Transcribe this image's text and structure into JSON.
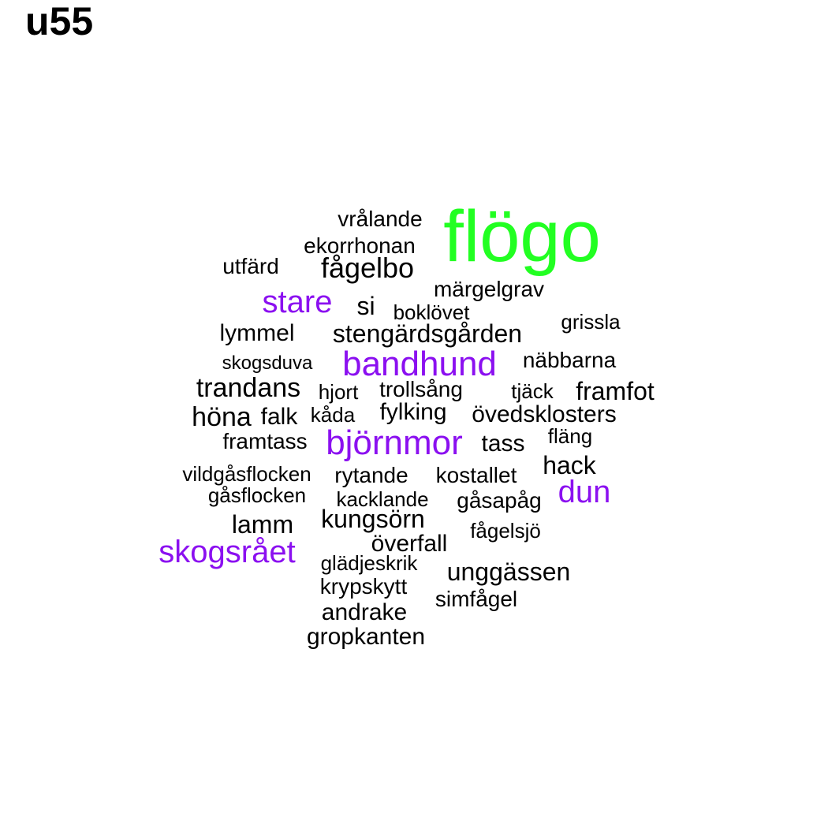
{
  "title": "u55",
  "colors": {
    "large": "#22ff22",
    "medium": "#8b10f0",
    "small": "#000000"
  },
  "words": [
    {
      "text": "flögo",
      "tier": "large"
    },
    {
      "text": "vrålande",
      "tier": "small"
    },
    {
      "text": "ekorrhonan",
      "tier": "small"
    },
    {
      "text": "utfärd",
      "tier": "small"
    },
    {
      "text": "fågelbo",
      "tier": "small"
    },
    {
      "text": "märgelgrav",
      "tier": "small"
    },
    {
      "text": "stare",
      "tier": "medium"
    },
    {
      "text": "si",
      "tier": "small"
    },
    {
      "text": "boklövet",
      "tier": "small"
    },
    {
      "text": "grissla",
      "tier": "small"
    },
    {
      "text": "lymmel",
      "tier": "small"
    },
    {
      "text": "stengärdsgården",
      "tier": "small"
    },
    {
      "text": "skogsduva",
      "tier": "small"
    },
    {
      "text": "bandhund",
      "tier": "medium"
    },
    {
      "text": "näbbarna",
      "tier": "small"
    },
    {
      "text": "trandans",
      "tier": "small"
    },
    {
      "text": "hjort",
      "tier": "small"
    },
    {
      "text": "trollsång",
      "tier": "small"
    },
    {
      "text": "tjäck",
      "tier": "small"
    },
    {
      "text": "framfot",
      "tier": "small"
    },
    {
      "text": "höna",
      "tier": "small"
    },
    {
      "text": "falk",
      "tier": "small"
    },
    {
      "text": "kåda",
      "tier": "small"
    },
    {
      "text": "fylking",
      "tier": "small"
    },
    {
      "text": "övedsklosters",
      "tier": "small"
    },
    {
      "text": "framtass",
      "tier": "small"
    },
    {
      "text": "björnmor",
      "tier": "medium"
    },
    {
      "text": "tass",
      "tier": "small"
    },
    {
      "text": "fläng",
      "tier": "small"
    },
    {
      "text": "hack",
      "tier": "small"
    },
    {
      "text": "vildgåsflocken",
      "tier": "small"
    },
    {
      "text": "rytande",
      "tier": "small"
    },
    {
      "text": "kostallet",
      "tier": "small"
    },
    {
      "text": "dun",
      "tier": "medium"
    },
    {
      "text": "gåsflocken",
      "tier": "small"
    },
    {
      "text": "kacklande",
      "tier": "small"
    },
    {
      "text": "gåsapåg",
      "tier": "small"
    },
    {
      "text": "lamm",
      "tier": "small"
    },
    {
      "text": "kungsörn",
      "tier": "small"
    },
    {
      "text": "fågelsjö",
      "tier": "small"
    },
    {
      "text": "skogsrået",
      "tier": "medium"
    },
    {
      "text": "överfall",
      "tier": "small"
    },
    {
      "text": "glädjeskrik",
      "tier": "small"
    },
    {
      "text": "unggässen",
      "tier": "small"
    },
    {
      "text": "krypskytt",
      "tier": "small"
    },
    {
      "text": "simfågel",
      "tier": "small"
    },
    {
      "text": "andrake",
      "tier": "small"
    },
    {
      "text": "gropkanten",
      "tier": "small"
    }
  ]
}
